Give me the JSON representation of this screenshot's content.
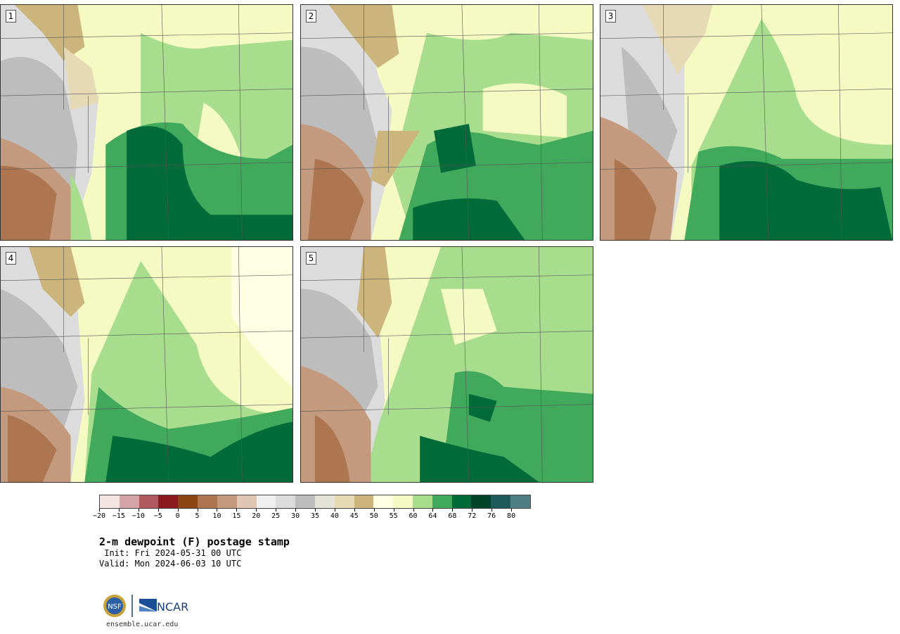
{
  "panels": [
    {
      "label": "1"
    },
    {
      "label": "2"
    },
    {
      "label": "3"
    },
    {
      "label": "4"
    },
    {
      "label": "5"
    }
  ],
  "colorbar": {
    "colors": [
      "#f3e4e4",
      "#d4a3a8",
      "#b05a60",
      "#8b1a1f",
      "#8a4512",
      "#ad7651",
      "#c49a7e",
      "#e0c7b4",
      "#f0f0f0",
      "#dcdcdc",
      "#bdbdbd",
      "#e3e3d9",
      "#e6dab6",
      "#cbb57c",
      "#ffffe3",
      "#f5f9c2",
      "#a8dd8e",
      "#41a95c",
      "#006b39",
      "#00432a",
      "#1e5a5c",
      "#4e7f85"
    ],
    "tick_labels": [
      "−20",
      "−15",
      "−10",
      "−5",
      "0",
      "5",
      "10",
      "15",
      "20",
      "25",
      "30",
      "35",
      "40",
      "45",
      "50",
      "55",
      "60",
      "64",
      "68",
      "72",
      "76",
      "80"
    ],
    "units": "F"
  },
  "title": "2-m dewpoint (F) postage stamp",
  "init": " Init: Fri 2024-05-31 00 UTC",
  "valid": "Valid: Mon 2024-06-03 10 UTC",
  "logo": {
    "left": "NSF",
    "right": "NCAR"
  },
  "website": "ensemble.ucar.edu"
}
